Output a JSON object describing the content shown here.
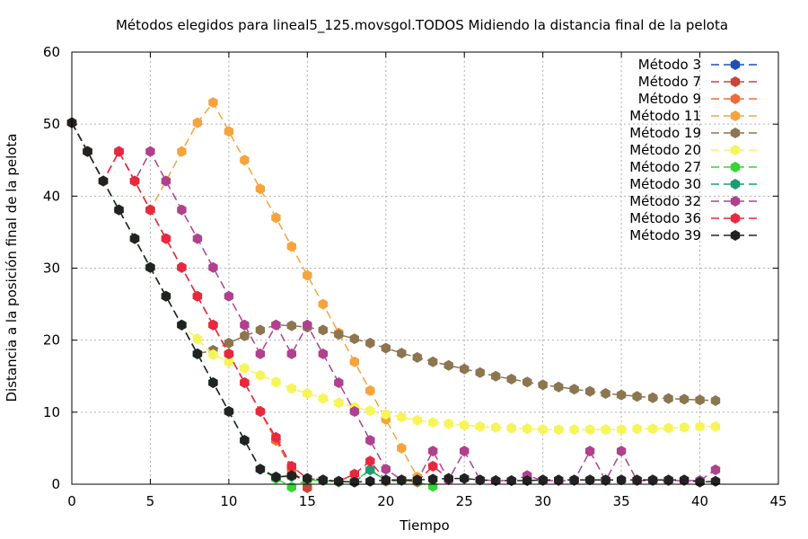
{
  "chart_data": {
    "type": "line",
    "title": "Métodos elegidos para lineal5_125.movsgol.TODOS Midiendo la distancia final de la pelota",
    "xlabel": "Tiempo",
    "ylabel": "Distancia a la posición final de la pelota",
    "xlim": [
      0,
      45
    ],
    "ylim": [
      0,
      60
    ],
    "xticks": [
      0,
      5,
      10,
      15,
      20,
      25,
      30,
      35,
      40,
      45
    ],
    "yticks": [
      0,
      10,
      20,
      30,
      40,
      50,
      60
    ],
    "grid": true,
    "legend_position": "top-right",
    "series": [
      {
        "name": "Método 3",
        "color": "#1f4fb4",
        "x": [
          0,
          1,
          2
        ],
        "y": [
          50.2,
          46.2,
          42.1
        ]
      },
      {
        "name": "Método 7",
        "color": "#c8453c",
        "x": [
          0,
          1,
          2,
          3,
          4,
          5,
          6,
          7,
          8,
          9,
          10,
          11,
          12,
          13,
          14,
          15
        ],
        "y": [
          50.2,
          46.2,
          42.1,
          46.2,
          42.1,
          38.1,
          34.1,
          30.1,
          26.1,
          22.1,
          18.1,
          14.1,
          10.1,
          6.1,
          2.1,
          -0.5
        ]
      },
      {
        "name": "Método 9",
        "color": "#ee6c3a",
        "x": [
          0,
          1,
          2,
          3,
          4,
          5,
          6,
          7,
          8,
          9,
          10,
          11,
          12,
          13,
          14
        ],
        "y": [
          50.2,
          46.2,
          42.1,
          46.2,
          42.1,
          38.1,
          34.1,
          30.1,
          26.1,
          22.1,
          18.1,
          14.1,
          10.1,
          6.1,
          2.1
        ]
      },
      {
        "name": "Método 11",
        "color": "#f5a33c",
        "x": [
          0,
          1,
          2,
          3,
          4,
          5,
          6,
          7,
          8,
          9,
          10,
          11,
          12,
          13,
          14,
          15,
          16,
          17,
          18,
          19,
          20,
          21,
          22
        ],
        "y": [
          50.2,
          46.2,
          42.1,
          46.2,
          42.1,
          38.1,
          42.1,
          46.2,
          50.2,
          53.0,
          49.0,
          45.0,
          41.0,
          37.0,
          33.0,
          29.0,
          25.0,
          21.0,
          17.0,
          13.0,
          9.0,
          5.0,
          1.0
        ]
      },
      {
        "name": "Método 19",
        "color": "#8b7650",
        "x": [
          0,
          1,
          2,
          3,
          4,
          5,
          6,
          7,
          8,
          9,
          10,
          11,
          12,
          13,
          14,
          15,
          16,
          17,
          18,
          19,
          20,
          21,
          22,
          23,
          24,
          25,
          26,
          27,
          28,
          29,
          30,
          31,
          32,
          33,
          34,
          35,
          36,
          37,
          38,
          39,
          40,
          41
        ],
        "y": [
          50.2,
          46.2,
          42.1,
          38.1,
          34.1,
          30.1,
          26.1,
          22.1,
          18.1,
          18.6,
          19.6,
          20.6,
          21.4,
          22.1,
          22.0,
          21.8,
          21.4,
          20.8,
          20.2,
          19.6,
          18.9,
          18.2,
          17.6,
          17.0,
          16.5,
          16.0,
          15.5,
          15.0,
          14.6,
          14.2,
          13.8,
          13.5,
          13.2,
          12.9,
          12.6,
          12.4,
          12.2,
          12.0,
          11.9,
          11.8,
          11.7,
          11.6
        ]
      },
      {
        "name": "Método 20",
        "color": "#f5f55a",
        "x": [
          0,
          1,
          2,
          3,
          4,
          5,
          6,
          7,
          8,
          9,
          10,
          11,
          12,
          13,
          14,
          15,
          16,
          17,
          18,
          19,
          20,
          21,
          22,
          23,
          24,
          25,
          26,
          27,
          28,
          29,
          30,
          31,
          32,
          33,
          34,
          35,
          36,
          37,
          38,
          39,
          40,
          41
        ],
        "y": [
          50.2,
          46.2,
          42.1,
          38.1,
          34.1,
          30.1,
          26.1,
          22.1,
          20.2,
          18.0,
          17.0,
          16.1,
          15.1,
          14.2,
          13.3,
          12.6,
          11.9,
          11.3,
          10.7,
          10.2,
          9.7,
          9.3,
          8.9,
          8.6,
          8.4,
          8.2,
          8.0,
          7.9,
          7.8,
          7.7,
          7.6,
          7.6,
          7.6,
          7.6,
          7.6,
          7.6,
          7.7,
          7.7,
          7.8,
          7.9,
          8.0,
          8.0
        ]
      },
      {
        "name": "Método 27",
        "color": "#33d633",
        "x": [
          0,
          1,
          2,
          3,
          4,
          5,
          6,
          7,
          8,
          9,
          10,
          11,
          12,
          13,
          14,
          15,
          16,
          17,
          18,
          19,
          20,
          21,
          22,
          23
        ],
        "y": [
          50.2,
          46.2,
          42.1,
          38.1,
          34.1,
          30.1,
          26.1,
          22.1,
          18.1,
          14.1,
          10.1,
          6.1,
          2.1,
          0.8,
          -0.4,
          0.6,
          0.5,
          0.3,
          0.4,
          2.0,
          0.4,
          0.5,
          0.3,
          -0.3
        ]
      },
      {
        "name": "Método 30",
        "color": "#1b9e6e",
        "x": [
          0,
          1,
          2,
          3,
          4,
          5,
          6,
          7,
          8,
          9,
          10,
          11,
          12,
          13,
          14,
          15,
          16,
          17,
          18,
          19,
          20
        ],
        "y": [
          50.2,
          46.2,
          42.1,
          38.1,
          34.1,
          30.1,
          26.1,
          22.1,
          18.1,
          14.1,
          10.1,
          6.1,
          2.1,
          1.0,
          1.1,
          0.8,
          0.6,
          0.4,
          0.3,
          2.0,
          0.5
        ]
      },
      {
        "name": "Método 32",
        "color": "#b0418c",
        "x": [
          0,
          1,
          2,
          3,
          4,
          5,
          6,
          7,
          8,
          9,
          10,
          11,
          12,
          13,
          14,
          15,
          16,
          17,
          18,
          19,
          20,
          21,
          22,
          23,
          24,
          25,
          26,
          27,
          28,
          29,
          30,
          31,
          32,
          33,
          34,
          35,
          36,
          37,
          38,
          39,
          40,
          41
        ],
        "y": [
          50.2,
          46.2,
          42.1,
          46.2,
          42.1,
          46.2,
          42.1,
          38.1,
          34.1,
          30.1,
          26.1,
          22.1,
          18.1,
          22.1,
          18.1,
          22.1,
          18.1,
          14.1,
          10.1,
          6.1,
          2.1,
          0.6,
          0.5,
          4.6,
          0.6,
          4.6,
          0.6,
          0.5,
          0.5,
          1.2,
          0.5,
          0.5,
          0.5,
          4.6,
          0.5,
          4.6,
          0.5,
          0.5,
          0.5,
          0.5,
          0.5,
          2.0
        ]
      },
      {
        "name": "Método 36",
        "color": "#e8283f",
        "x": [
          0,
          1,
          2,
          3,
          4,
          5,
          6,
          7,
          8,
          9,
          10,
          11,
          12,
          13,
          14,
          15,
          16,
          17,
          18,
          19,
          20,
          21,
          22,
          23,
          24
        ],
        "y": [
          50.2,
          46.2,
          42.1,
          46.2,
          42.1,
          38.1,
          34.1,
          30.1,
          26.1,
          22.1,
          18.1,
          14.1,
          10.1,
          6.5,
          2.5,
          0.8,
          0.6,
          0.4,
          1.4,
          3.2,
          0.5,
          0.6,
          0.4,
          2.5,
          0.8
        ]
      },
      {
        "name": "Método 39",
        "color": "#222222",
        "x": [
          0,
          1,
          2,
          3,
          4,
          5,
          6,
          7,
          8,
          9,
          10,
          11,
          12,
          13,
          14,
          15,
          16,
          17,
          18,
          19,
          20,
          21,
          22,
          23,
          24,
          25,
          26,
          27,
          28,
          29,
          30,
          31,
          32,
          33,
          34,
          35,
          36,
          37,
          38,
          39,
          40,
          41
        ],
        "y": [
          50.2,
          46.2,
          42.1,
          38.1,
          34.1,
          30.1,
          26.1,
          22.1,
          18.1,
          14.1,
          10.1,
          6.1,
          2.1,
          1.0,
          1.2,
          0.8,
          0.6,
          0.4,
          0.3,
          0.4,
          0.6,
          0.6,
          0.6,
          0.7,
          0.8,
          0.8,
          0.6,
          0.5,
          0.5,
          0.5,
          0.6,
          0.6,
          0.6,
          0.6,
          0.6,
          0.6,
          0.6,
          0.6,
          0.6,
          0.6,
          0.3,
          0.4
        ]
      }
    ]
  }
}
